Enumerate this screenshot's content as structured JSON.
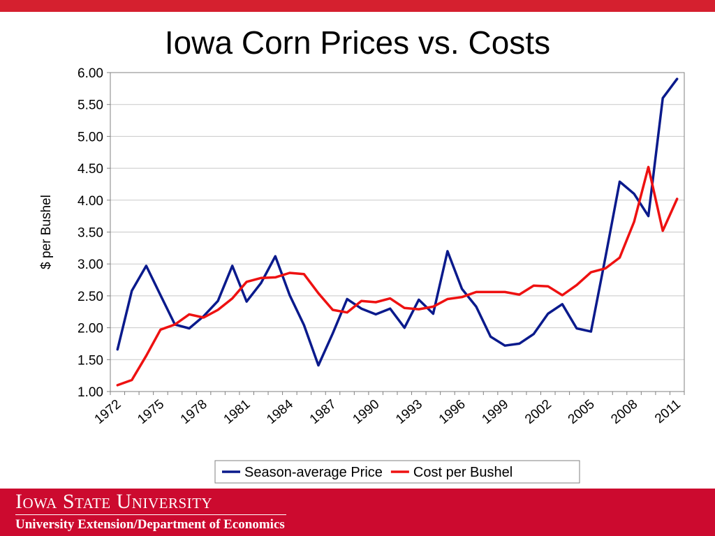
{
  "slide": {
    "title": "Iowa Corn Prices vs. Costs"
  },
  "footer": {
    "university": "Iowa State University",
    "department": "University Extension/Department of Economics"
  },
  "colors": {
    "top_bar": "#d5202f",
    "footer": "#cc0a2f",
    "price_series": "#0a1a8c",
    "cost_series": "#ee1111"
  },
  "chart_data": {
    "type": "line",
    "title": "",
    "xlabel": "",
    "ylabel": "$ per Bushel",
    "ylim": [
      1.0,
      6.0
    ],
    "yticks": [
      "1.00",
      "1.50",
      "2.00",
      "2.50",
      "3.00",
      "3.50",
      "4.00",
      "4.50",
      "5.00",
      "5.50",
      "6.00"
    ],
    "x": [
      1972,
      1973,
      1974,
      1975,
      1976,
      1977,
      1978,
      1979,
      1980,
      1981,
      1982,
      1983,
      1984,
      1985,
      1986,
      1987,
      1988,
      1989,
      1990,
      1991,
      1992,
      1993,
      1994,
      1995,
      1996,
      1997,
      1998,
      1999,
      2000,
      2001,
      2002,
      2003,
      2004,
      2005,
      2006,
      2007,
      2008,
      2009,
      2010,
      2011
    ],
    "xtick_labels": [
      "1972",
      "1975",
      "1978",
      "1981",
      "1984",
      "1987",
      "1990",
      "1993",
      "1996",
      "1999",
      "2002",
      "2005",
      "2008",
      "2011"
    ],
    "legend_position": "bottom",
    "grid": true,
    "series": [
      {
        "name": "Season-average Price",
        "color": "#0a1a8c",
        "values": [
          1.66,
          2.58,
          2.97,
          2.51,
          2.05,
          1.99,
          2.18,
          2.42,
          2.97,
          2.41,
          2.7,
          3.12,
          2.51,
          2.04,
          1.41,
          1.91,
          2.45,
          2.3,
          2.21,
          2.3,
          2.0,
          2.44,
          2.22,
          3.2,
          2.61,
          2.33,
          1.86,
          1.72,
          1.75,
          1.9,
          2.22,
          2.37,
          1.99,
          1.94,
          3.1,
          4.29,
          4.1,
          3.75,
          5.6,
          5.9
        ]
      },
      {
        "name": "Cost per Bushel",
        "color": "#ee1111",
        "values": [
          1.1,
          1.18,
          1.56,
          1.97,
          2.05,
          2.21,
          2.16,
          2.28,
          2.46,
          2.72,
          2.78,
          2.79,
          2.86,
          2.84,
          2.54,
          2.28,
          2.24,
          2.42,
          2.4,
          2.46,
          2.31,
          2.29,
          2.33,
          2.45,
          2.48,
          2.56,
          2.56,
          2.56,
          2.52,
          2.66,
          2.65,
          2.51,
          2.67,
          2.87,
          2.93,
          3.1,
          3.66,
          4.52,
          3.52,
          4.02
        ]
      }
    ]
  }
}
